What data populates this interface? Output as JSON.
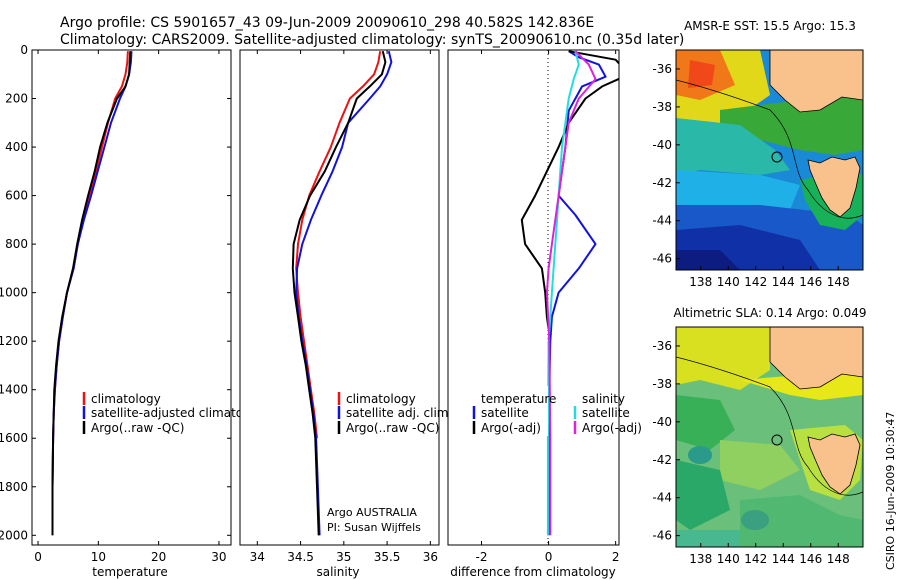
{
  "header": {
    "line1": "Argo profile: CS 5901657_43 09-Jun-2009 20090610_298 40.582S 142.836E",
    "line2": "Climatology: CARS2009. Satellite-adjusted climatology: synTS_20090610.nc (0.35d later)"
  },
  "footer": {
    "credit": "CSIRO 16-Jun-2009 10:30:47",
    "argo_country": "Argo AUSTRALIA",
    "pi": "PI: Susan Wijffels"
  },
  "colors": {
    "climatology": "#ee1111",
    "satellite": "#1111dd",
    "argo": "#000000",
    "sal_satellite": "#22dddd",
    "sal_argo": "#dd22dd",
    "land": "#f9c18c"
  },
  "chart_data": [
    {
      "type": "line",
      "name": "temperature",
      "xlabel": "temperature",
      "ylabel": "",
      "xlim": [
        -1,
        32
      ],
      "ylim": [
        2040,
        0
      ],
      "xticks": [
        0,
        10,
        20,
        30
      ],
      "yticks": [
        0,
        200,
        400,
        600,
        800,
        1000,
        1200,
        1400,
        1600,
        1800,
        2000
      ],
      "legend": [
        "climatology",
        "satellite-adjusted climatology",
        "Argo(..raw -QC)"
      ],
      "legend_position": "bottom-right",
      "series": [
        {
          "name": "climatology",
          "color": "#ee1111",
          "x": [
            14.9,
            14.8,
            14.5,
            13.9,
            12.8,
            11.6,
            10.6,
            9.6,
            8.6,
            7.5,
            6.6,
            5.9,
            4.8,
            4.1,
            3.5,
            3.1,
            2.8,
            2.6,
            2.5,
            2.4,
            2.4
          ],
          "y": [
            5,
            50,
            100,
            150,
            200,
            300,
            400,
            500,
            600,
            700,
            800,
            900,
            1000,
            1100,
            1200,
            1300,
            1400,
            1500,
            1600,
            1800,
            1880
          ]
        },
        {
          "name": "satellite-adjusted climatology",
          "color": "#1111dd",
          "x": [
            15.5,
            15.4,
            15.1,
            14.5,
            13.6,
            12.1,
            11.0,
            9.9,
            8.8,
            7.6,
            6.6,
            5.9,
            4.8,
            4.1,
            3.5,
            3.1,
            2.8,
            2.6,
            2.5,
            2.4,
            2.4
          ],
          "y": [
            5,
            50,
            100,
            150,
            200,
            300,
            400,
            500,
            600,
            700,
            800,
            900,
            1000,
            1100,
            1200,
            1300,
            1400,
            1500,
            1600,
            1800,
            2000
          ]
        },
        {
          "name": "Argo(..raw -QC)",
          "color": "#000000",
          "x": [
            15.3,
            15.2,
            15.1,
            14.5,
            13.1,
            11.5,
            10.3,
            9.4,
            8.3,
            7.3,
            6.5,
            5.8,
            4.8,
            4.0,
            3.4,
            3.0,
            2.7,
            2.6,
            2.5,
            2.4,
            2.4
          ],
          "y": [
            5,
            50,
            100,
            150,
            200,
            300,
            400,
            500,
            600,
            700,
            800,
            900,
            1000,
            1100,
            1200,
            1300,
            1400,
            1500,
            1600,
            1800,
            2000
          ]
        }
      ]
    },
    {
      "type": "line",
      "name": "salinity",
      "xlabel": "salinity",
      "ylabel": "",
      "xlim": [
        33.8,
        36.1
      ],
      "ylim": [
        2040,
        0
      ],
      "xticks": [
        34,
        34.5,
        35,
        35.5,
        36
      ],
      "yticks": [],
      "legend": [
        "climatology",
        "satellite adj. clim.",
        "Argo(..raw -QC)"
      ],
      "legend_position": "bottom-right",
      "series": [
        {
          "name": "climatology",
          "color": "#ee1111",
          "x": [
            35.42,
            35.4,
            35.35,
            35.22,
            35.07,
            34.95,
            34.85,
            34.72,
            34.6,
            34.52,
            34.47,
            34.45,
            34.47,
            34.5,
            34.54,
            34.58,
            34.62,
            34.66,
            34.69
          ],
          "y": [
            5,
            50,
            100,
            150,
            200,
            300,
            400,
            500,
            600,
            700,
            800,
            900,
            1000,
            1100,
            1200,
            1300,
            1400,
            1500,
            1600
          ]
        },
        {
          "name": "satellite adj. clim.",
          "color": "#1111dd",
          "x": [
            35.52,
            35.55,
            35.5,
            35.42,
            35.3,
            35.05,
            34.98,
            34.87,
            34.74,
            34.62,
            34.52,
            34.46,
            34.45,
            34.48,
            34.52,
            34.57,
            34.61,
            34.65,
            34.68,
            34.7,
            34.72
          ],
          "y": [
            5,
            50,
            100,
            150,
            200,
            300,
            400,
            500,
            600,
            700,
            800,
            900,
            1000,
            1100,
            1200,
            1300,
            1400,
            1500,
            1600,
            1800,
            2000
          ]
        },
        {
          "name": "Argo(..raw -QC)",
          "color": "#000000",
          "x": [
            35.45,
            35.48,
            35.44,
            35.3,
            35.15,
            35.05,
            34.91,
            34.78,
            34.61,
            34.49,
            34.42,
            34.41,
            34.43,
            34.47,
            34.51,
            34.56,
            34.6,
            34.64,
            34.67,
            34.69,
            34.71
          ],
          "y": [
            5,
            50,
            100,
            150,
            200,
            300,
            400,
            500,
            600,
            700,
            800,
            900,
            1000,
            1100,
            1200,
            1300,
            1400,
            1500,
            1600,
            1800,
            2000
          ]
        }
      ]
    },
    {
      "type": "line",
      "name": "difference",
      "xlabel": "difference from climatology",
      "ylabel": "",
      "xlim": [
        -3,
        2.1
      ],
      "ylim": [
        2040,
        0
      ],
      "xticks": [
        -2,
        0,
        2
      ],
      "yticks": [],
      "legend": [
        "temperature",
        "satellite",
        "Argo(-adj)",
        "salinity",
        "satellite",
        "Argo(-adj)"
      ],
      "legend_position": "bottom",
      "series": [
        {
          "name": "temperature satellite",
          "color": "#1111dd",
          "x": [
            0.6,
            0.9,
            1.5,
            1.7,
            1.0,
            0.6,
            0.5,
            0.3,
            0.8,
            1.4,
            0.9,
            0.3,
            0.1,
            0.05,
            0.02,
            0.0,
            0.0
          ],
          "y": [
            5,
            30,
            60,
            110,
            150,
            250,
            400,
            600,
            680,
            800,
            900,
            1000,
            1100,
            1200,
            1400,
            1600,
            2000
          ]
        },
        {
          "name": "temperature Argo(-adj)",
          "color": "#000000",
          "x": [
            0.6,
            2.0,
            2.4,
            1.6,
            1.1,
            0.6,
            0.3,
            -0.4,
            -0.8,
            -0.7,
            -0.2,
            -0.1,
            -0.05,
            0.0
          ],
          "y": [
            5,
            40,
            100,
            150,
            200,
            300,
            400,
            600,
            700,
            800,
            900,
            1000,
            1100,
            1150
          ]
        },
        {
          "name": "salinity satellite",
          "color": "#22dddd",
          "x": [
            0.8,
            0.9,
            0.75,
            0.6,
            0.5,
            0.4,
            0.35,
            0.3,
            0.25,
            0.2,
            0.15,
            0.1,
            0.05,
            0.0,
            -0.02,
            -0.02
          ],
          "y": [
            5,
            60,
            120,
            200,
            300,
            400,
            500,
            600,
            700,
            800,
            900,
            1000,
            1100,
            1200,
            1600,
            2000
          ]
        },
        {
          "name": "salinity Argo(-adj)",
          "color": "#dd22dd",
          "x": [
            0.8,
            1.2,
            1.4,
            0.9,
            0.6,
            0.5,
            0.4,
            0.2,
            0.1,
            0.0,
            -0.05,
            0.02,
            0.05,
            0.05
          ],
          "y": [
            5,
            60,
            120,
            200,
            300,
            400,
            500,
            700,
            800,
            900,
            1000,
            1200,
            1600,
            2000
          ]
        }
      ]
    },
    {
      "type": "heatmap",
      "name": "sst-map",
      "title": "AMSR-E SST: 15.5 Argo: 15.3",
      "xlim": [
        136.2,
        149.8
      ],
      "ylim": [
        -46.6,
        -35.0
      ],
      "xticks": [
        138,
        140,
        142,
        144,
        146,
        148
      ],
      "yticks": [
        -36,
        -38,
        -40,
        -42,
        -44,
        -46
      ],
      "marker": {
        "lon": 142.836,
        "lat": -40.582
      }
    },
    {
      "type": "heatmap",
      "name": "sla-map",
      "title": "Altimetric SLA: 0.14 Argo: 0.049",
      "xlim": [
        136.2,
        149.8
      ],
      "ylim": [
        -46.6,
        -35.0
      ],
      "xticks": [
        138,
        140,
        142,
        144,
        146,
        148
      ],
      "yticks": [
        -36,
        -38,
        -40,
        -42,
        -44,
        -46
      ],
      "marker": {
        "lon": 142.836,
        "lat": -40.582
      }
    }
  ]
}
